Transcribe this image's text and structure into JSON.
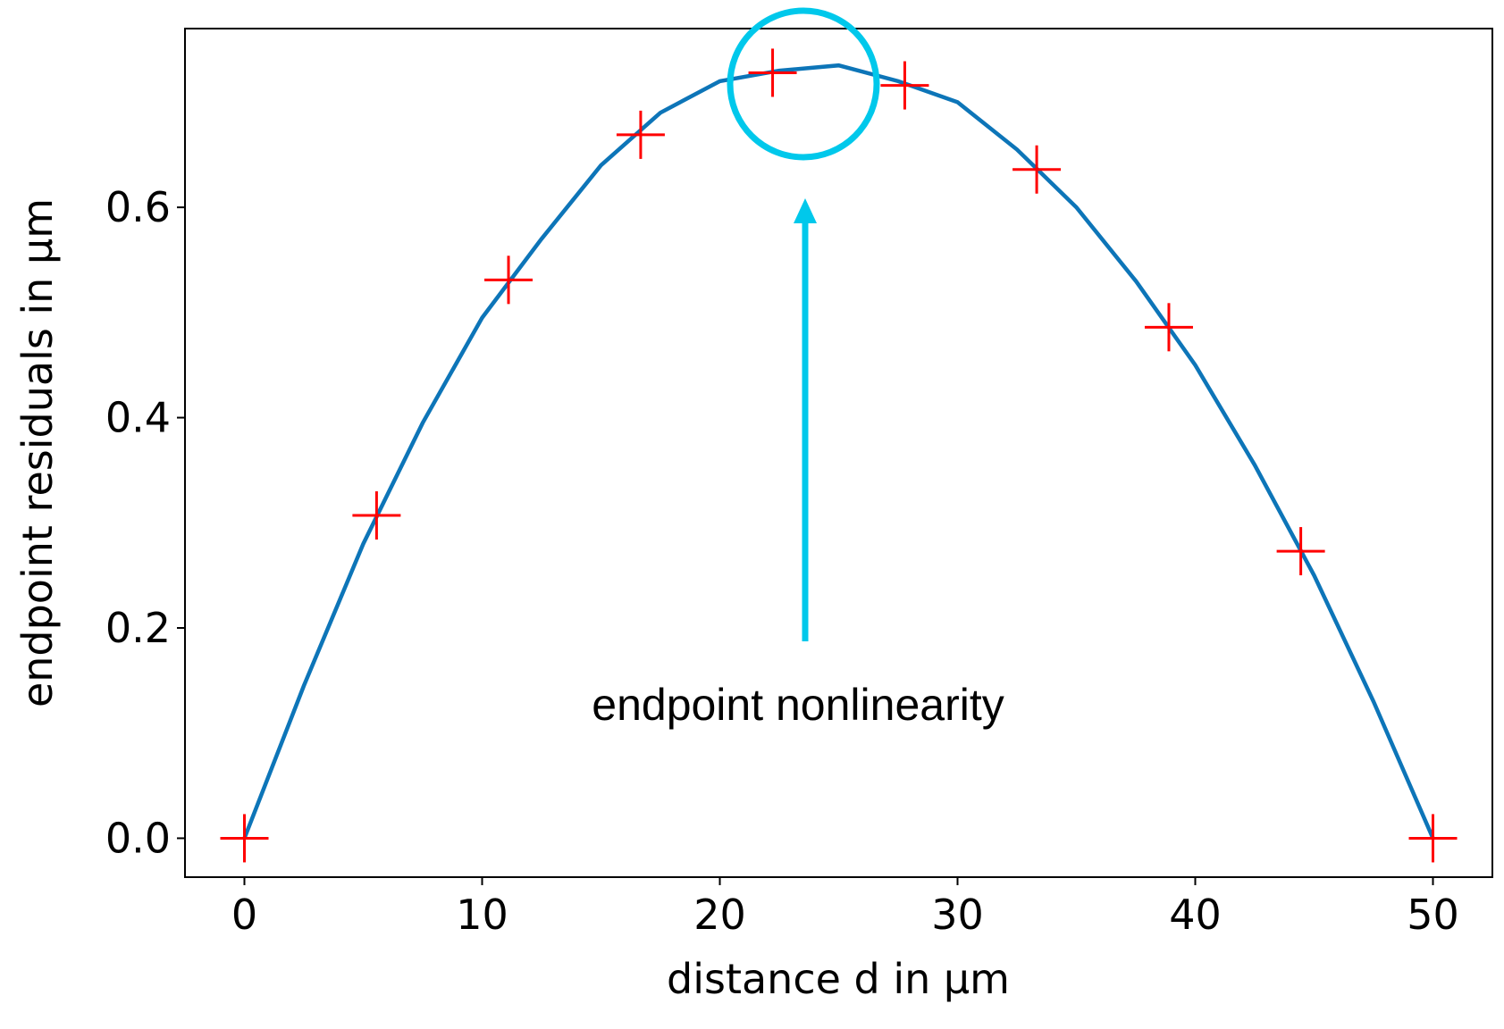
{
  "chart_data": {
    "type": "scatter+line",
    "xlabel": "distance d in µm",
    "ylabel": "endpoint residuals in µm",
    "annotation": "endpoint nonlinearity",
    "xlim": [
      -2.5,
      52.5
    ],
    "xticks": [
      0,
      10,
      20,
      30,
      40,
      50
    ],
    "ylim": [
      -0.037,
      0.77
    ],
    "yticks": [
      {
        "value": 0,
        "label": "0.0"
      },
      {
        "value": 0.2,
        "label": "0.2"
      },
      {
        "value": 0.4,
        "label": "0.4"
      },
      {
        "value": 0.6,
        "label": "0.6"
      }
    ],
    "series": [
      {
        "kind": "scatter",
        "marker": "plus",
        "color": "#ff0000",
        "x": [
          0,
          5.56,
          11.11,
          16.67,
          22.22,
          27.78,
          33.33,
          38.89,
          44.44,
          50
        ],
        "values": [
          0,
          0.307,
          0.531,
          0.669,
          0.728,
          0.716,
          0.636,
          0.486,
          0.273,
          0
        ]
      },
      {
        "kind": "line",
        "color": "#0d75b8",
        "x": [
          0,
          2.5,
          5,
          7.5,
          10,
          12.5,
          15,
          17.5,
          20,
          22.5,
          25,
          27.5,
          30,
          32.5,
          35,
          37.5,
          40,
          42.5,
          45,
          47.5,
          50
        ],
        "values": [
          0,
          0.145,
          0.28,
          0.395,
          0.495,
          0.57,
          0.64,
          0.69,
          0.72,
          0.73,
          0.735,
          0.72,
          0.7,
          0.655,
          0.6,
          0.53,
          0.45,
          0.355,
          0.25,
          0.13,
          0
        ]
      }
    ]
  }
}
